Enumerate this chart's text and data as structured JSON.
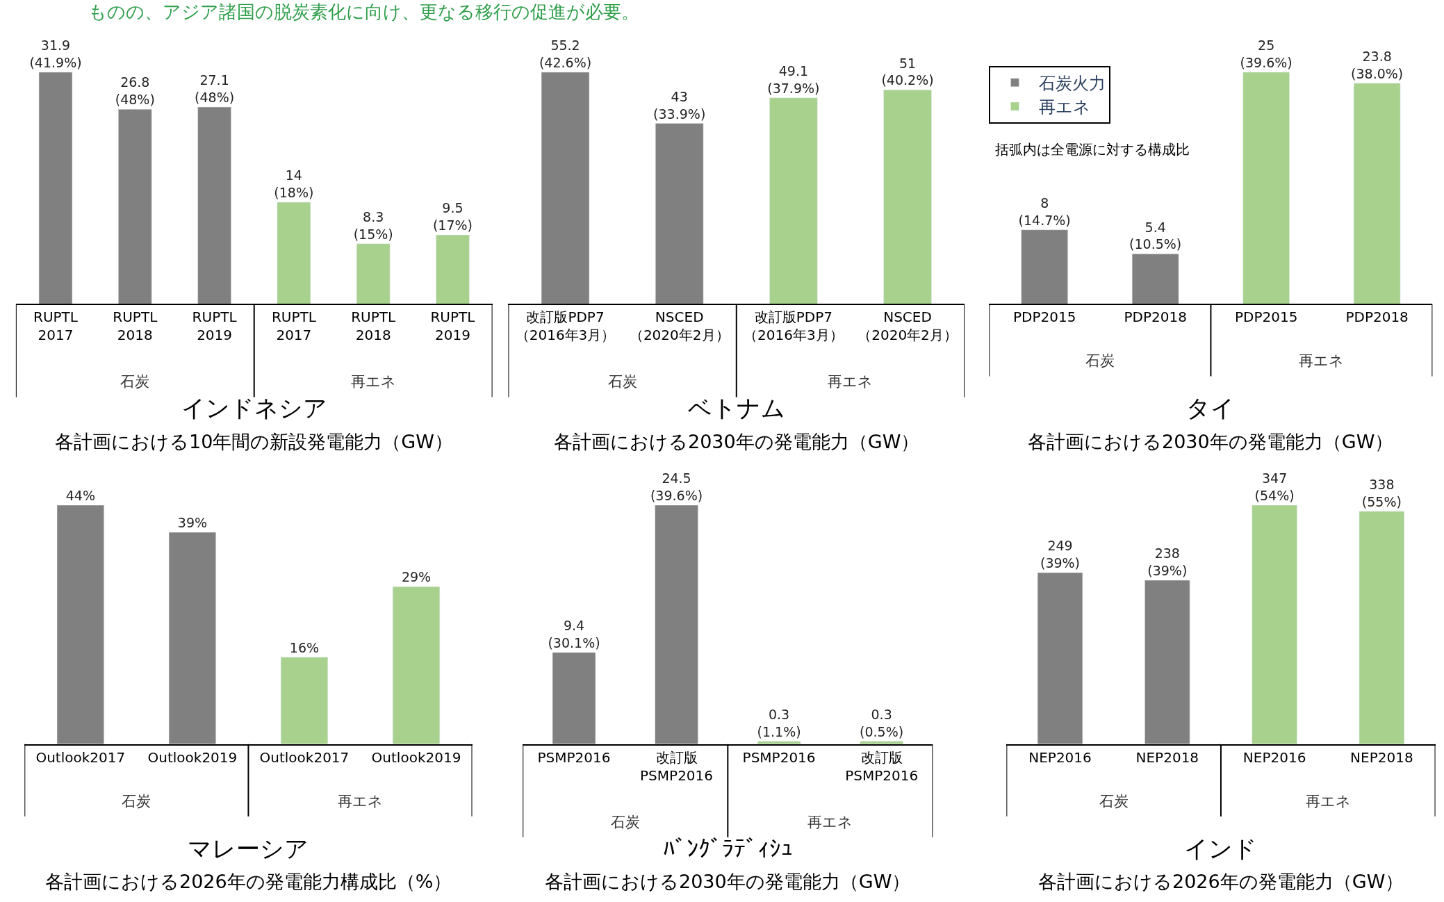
{
  "chart_data": [
    {
      "type": "bar",
      "title": "インドネシア",
      "subtitle": "各計画における10年間の新設発電能力（GW）",
      "categories": [
        "RUPTL\n2017",
        "RUPTL\n2018",
        "RUPTL\n2019",
        "RUPTL\n2017",
        "RUPTL\n2018",
        "RUPTL\n2019"
      ],
      "series": [
        {
          "color": "#808080",
          "values": [
            31.9,
            26.8,
            27.1,
            null,
            null,
            null
          ],
          "value_labels": [
            "31.9\n(41.9%)",
            "26.8\n(48%)",
            "27.1\n(48%)",
            null,
            null,
            null
          ]
        },
        {
          "color": "#a9d18e",
          "values": [
            null,
            null,
            null,
            14,
            8.3,
            9.5
          ],
          "value_labels": [
            null,
            null,
            null,
            "14\n(18%)",
            "8.3\n(15%)",
            "9.5\n(17%)"
          ]
        }
      ],
      "annotations": [
        "石炭",
        "再エネ",
        "ものの、アジア諸国の脱炭素化に向け、更なる移行の促進が必要。"
      ]
    },
    {
      "type": "bar",
      "title": "ベトナム",
      "subtitle": "各計画における2030年の発電能力（GW）",
      "categories": [
        "改訂版PDP7\n（2016年3月）",
        "NSCED\n（2020年2月）",
        "改訂版PDP7\n（2016年3月）",
        "NSCED\n（2020年2月）"
      ],
      "series": [
        {
          "color": "#808080",
          "values": [
            55.2,
            43,
            null,
            null
          ],
          "value_labels": [
            "55.2\n(42.6%)",
            "43\n(33.9%)",
            null,
            null
          ]
        },
        {
          "color": "#a9d18e",
          "values": [
            null,
            null,
            49.1,
            51
          ],
          "value_labels": [
            null,
            null,
            "49.1\n(37.9%)",
            "51\n(40.2%)"
          ]
        }
      ],
      "annotations": [
        "石炭",
        "再エネ"
      ]
    },
    {
      "type": "bar",
      "title": "タイ",
      "subtitle": "各計画における2030年の発電能力（GW）",
      "categories": [
        "PDP2015",
        "PDP2018",
        "PDP2015",
        "PDP2018"
      ],
      "series": [
        {
          "name": "石炭火力",
          "color": "#808080",
          "values": [
            8,
            5.4,
            null,
            null
          ],
          "value_labels": [
            "8\n(14.7%)",
            "5.4\n(10.5%)",
            null,
            null
          ]
        },
        {
          "name": "再エネ",
          "color": "#a9d18e",
          "values": [
            null,
            null,
            25,
            23.8
          ],
          "value_labels": [
            null,
            null,
            "25\n(39.6%)",
            "23.8\n(38.0%)"
          ]
        }
      ],
      "legend": "top left",
      "annotations": [
        "石炭",
        "再エネ",
        "括弧内は全電源に対する構成比"
      ]
    },
    {
      "type": "bar",
      "title": "マレーシア",
      "subtitle": "各計画における2026年の発電能力構成比（%）",
      "categories": [
        "Outlook2017",
        "Outlook2019",
        "Outlook2017",
        "Outlook2019"
      ],
      "series": [
        {
          "color": "#808080",
          "values": [
            44,
            39,
            null,
            null
          ],
          "value_labels": [
            "44%",
            "39%",
            null,
            null
          ]
        },
        {
          "color": "#a9d18e",
          "values": [
            null,
            null,
            16,
            29
          ],
          "value_labels": [
            null,
            null,
            "16%",
            "29%"
          ]
        }
      ],
      "annotations": [
        "石炭",
        "再エネ"
      ]
    },
    {
      "type": "bar",
      "title": "ﾊﾞﾝｸﾞﾗﾃﾞｨｼｭ",
      "subtitle": "各計画における2030年の発電能力（GW）",
      "categories": [
        "PSMP2016",
        "改訂版\nPSMP2016",
        "PSMP2016",
        "改訂版\nPSMP2016"
      ],
      "series": [
        {
          "color": "#808080",
          "values": [
            9.4,
            24.5,
            null,
            null
          ],
          "value_labels": [
            "9.4\n(30.1%)",
            "24.5\n(39.6%)",
            null,
            null
          ]
        },
        {
          "color": "#a9d18e",
          "values": [
            null,
            null,
            0.3,
            0.3
          ],
          "value_labels": [
            null,
            null,
            "0.3\n(1.1%)",
            "0.3\n(0.5%)"
          ]
        }
      ],
      "annotations": [
        "石炭",
        "再エネ"
      ]
    },
    {
      "type": "bar",
      "title": "インド",
      "subtitle": "各計画における2026年の発電能力（GW）",
      "categories": [
        "NEP2016",
        "NEP2018",
        "NEP2016",
        "NEP2018"
      ],
      "series": [
        {
          "color": "#808080",
          "values": [
            249,
            238,
            null,
            null
          ],
          "value_labels": [
            "249\n(39%)",
            "238\n(39%)",
            null,
            null
          ]
        },
        {
          "color": "#a9d18e",
          "values": [
            null,
            null,
            347,
            338
          ],
          "value_labels": [
            null,
            null,
            "347\n(54%)",
            "338\n(55%)"
          ]
        }
      ],
      "annotations": [
        "石炭",
        "再エネ"
      ]
    }
  ]
}
